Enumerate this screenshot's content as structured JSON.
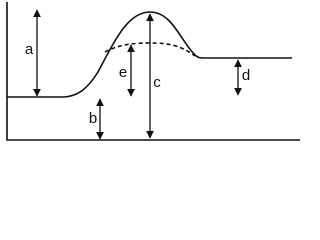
{
  "arrows": [
    {
      "label": "a"
    },
    {
      "label": "b"
    },
    {
      "label": "c"
    },
    {
      "label": "d"
    },
    {
      "label": "e"
    }
  ]
}
